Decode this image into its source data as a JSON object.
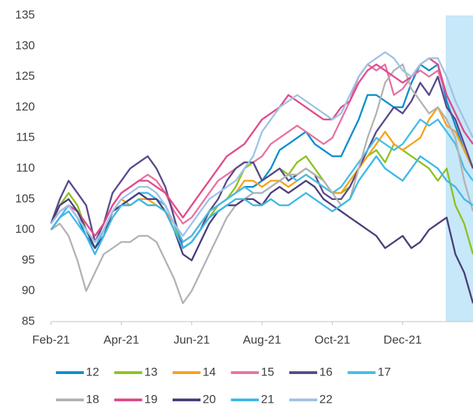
{
  "chart_data": {
    "type": "line",
    "categories": [
      "Feb-21",
      null,
      null,
      null,
      null,
      null,
      null,
      null,
      "Apr-21",
      null,
      null,
      null,
      null,
      null,
      null,
      null,
      "Jun-21",
      null,
      null,
      null,
      null,
      null,
      null,
      null,
      "Aug-21",
      null,
      null,
      null,
      null,
      null,
      null,
      null,
      "Oct-21",
      null,
      null,
      null,
      null,
      null,
      null,
      null,
      "Dec-21",
      null,
      null,
      null,
      null,
      null,
      null,
      null,
      null
    ],
    "ylim": [
      85,
      135
    ],
    "yticks": [
      85,
      90,
      95,
      100,
      105,
      110,
      115,
      120,
      125,
      130,
      135
    ],
    "grid": false,
    "legend": "bottom",
    "series": [
      {
        "name": "12",
        "color": "#0a8fd0",
        "values": [
          101,
          103,
          104,
          102,
          99,
          97,
          100,
          103,
          104,
          105,
          106,
          106,
          105,
          104,
          101,
          98,
          99,
          101,
          103,
          104,
          105,
          106,
          107,
          107,
          108,
          110,
          113,
          114,
          115,
          116,
          114,
          113,
          112,
          112,
          115,
          118,
          122,
          122,
          121,
          120,
          120,
          124,
          127,
          126,
          127,
          121,
          117,
          113,
          110
        ]
      },
      {
        "name": "13",
        "color": "#8dc21f",
        "values": [
          101,
          104,
          106,
          104,
          100,
          97,
          99,
          102,
          104,
          104,
          105,
          104,
          104,
          103,
          101,
          97,
          98,
          100,
          102,
          104,
          105,
          107,
          110,
          111,
          108,
          109,
          110,
          109,
          111,
          112,
          110,
          108,
          106,
          106,
          107,
          110,
          112,
          113,
          111,
          114,
          113,
          112,
          111,
          110,
          108,
          110,
          104,
          101,
          96
        ]
      },
      {
        "name": "14",
        "color": "#f7a21b",
        "values": [
          101,
          103,
          104,
          102,
          100,
          98,
          100,
          103,
          105,
          104,
          105,
          105,
          104,
          103,
          101,
          98,
          99,
          101,
          103,
          104,
          105,
          106,
          108,
          108,
          107,
          108,
          108,
          107,
          108,
          109,
          108,
          107,
          106,
          106,
          108,
          110,
          112,
          114,
          116,
          114,
          113,
          114,
          115,
          118,
          120,
          117,
          116,
          113,
          110
        ]
      },
      {
        "name": "15",
        "color": "#e873a4",
        "values": [
          100,
          102,
          104,
          103,
          101,
          99,
          101,
          104,
          106,
          107,
          108,
          109,
          108,
          106,
          103,
          101,
          102,
          104,
          106,
          108,
          109,
          110,
          111,
          111,
          112,
          114,
          115,
          116,
          117,
          116,
          115,
          114,
          115,
          118,
          121,
          125,
          127,
          126,
          127,
          122,
          123,
          125,
          126,
          125,
          126,
          122,
          119,
          116,
          114
        ]
      },
      {
        "name": "16",
        "color": "#5b4a8a",
        "values": [
          101,
          105,
          108,
          106,
          104,
          98,
          101,
          106,
          108,
          110,
          111,
          112,
          110,
          107,
          102,
          97,
          98,
          100,
          103,
          105,
          108,
          110,
          111,
          111,
          108,
          109,
          110,
          108,
          109,
          110,
          109,
          106,
          105,
          105,
          107,
          110,
          113,
          116,
          118,
          120,
          119,
          121,
          124,
          122,
          125,
          120,
          118,
          114,
          110
        ]
      },
      {
        "name": "17",
        "color": "#45bde8",
        "values": [
          100,
          102,
          104,
          102,
          100,
          97,
          100,
          103,
          104,
          105,
          106,
          106,
          105,
          104,
          101,
          98,
          99,
          101,
          103,
          104,
          105,
          106,
          107,
          106,
          106,
          107,
          108,
          109,
          108,
          109,
          108,
          107,
          106,
          107,
          109,
          111,
          113,
          115,
          114,
          113,
          114,
          116,
          118,
          117,
          118,
          116,
          114,
          110,
          108
        ]
      },
      {
        "name": "18",
        "color": "#b3b3b3",
        "values": [
          100,
          101,
          99,
          95,
          90,
          93,
          96,
          97,
          98,
          98,
          99,
          99,
          98,
          95,
          92,
          88,
          90,
          93,
          96,
          99,
          102,
          104,
          105,
          106,
          106,
          107,
          108,
          109,
          109,
          110,
          109,
          108,
          106,
          104,
          105,
          110,
          115,
          119,
          124,
          126,
          127,
          123,
          121,
          119,
          120,
          118,
          115,
          108,
          103
        ]
      },
      {
        "name": "19",
        "color": "#e04c8c",
        "values": [
          101,
          103,
          104,
          103,
          101,
          99,
          101,
          104,
          106,
          107,
          108,
          108,
          107,
          106,
          104,
          102,
          104,
          106,
          108,
          110,
          112,
          113,
          114,
          116,
          118,
          119,
          120,
          122,
          121,
          120,
          119,
          118,
          118,
          120,
          121,
          124,
          126,
          127,
          126,
          125,
          124,
          125,
          127,
          128,
          127,
          122,
          119,
          116,
          114
        ]
      },
      {
        "name": "20",
        "color": "#4b3f7a",
        "values": [
          101,
          104,
          105,
          103,
          100,
          97,
          99,
          103,
          104,
          105,
          106,
          105,
          105,
          103,
          100,
          96,
          95,
          98,
          101,
          103,
          104,
          104,
          105,
          105,
          104,
          106,
          107,
          106,
          107,
          108,
          107,
          105,
          104,
          103,
          102,
          101,
          100,
          99,
          97,
          98,
          99,
          97,
          98,
          100,
          101,
          102,
          96,
          93,
          88
        ]
      },
      {
        "name": "21",
        "color": "#3fb8e8",
        "values": [
          100,
          102,
          103,
          101,
          99,
          96,
          99,
          102,
          104,
          104,
          105,
          104,
          104,
          103,
          100,
          97,
          98,
          100,
          102,
          103,
          104,
          105,
          105,
          104,
          104,
          105,
          104,
          104,
          105,
          106,
          105,
          104,
          103,
          104,
          105,
          108,
          110,
          112,
          110,
          109,
          108,
          110,
          112,
          111,
          110,
          108,
          107,
          105,
          104
        ]
      },
      {
        "name": "22",
        "color": "#9fc3e6",
        "values": [
          101,
          103,
          104,
          102,
          100,
          98,
          100,
          103,
          105,
          106,
          107,
          107,
          106,
          104,
          101,
          99,
          101,
          103,
          105,
          106,
          107,
          108,
          110,
          112,
          116,
          118,
          120,
          121,
          122,
          121,
          120,
          119,
          118,
          119,
          122,
          125,
          127,
          128,
          129,
          128,
          126,
          125,
          127,
          128,
          128,
          125,
          121,
          118,
          115
        ]
      }
    ]
  }
}
